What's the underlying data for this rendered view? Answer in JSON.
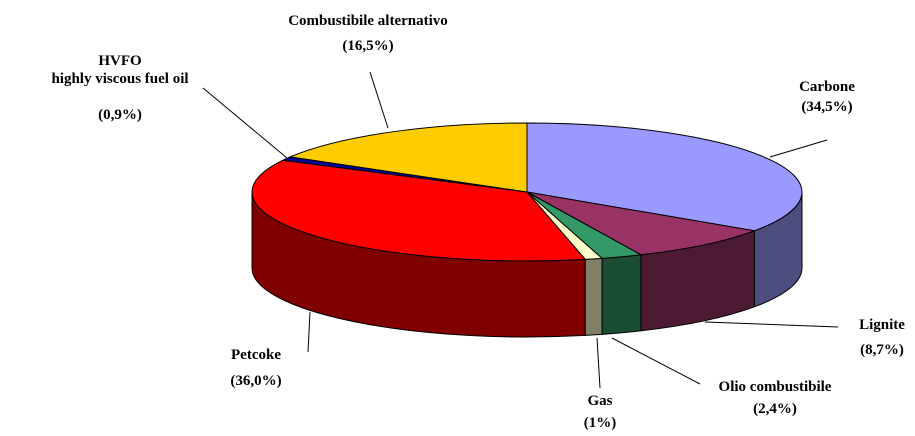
{
  "chart_data": {
    "type": "pie3d",
    "categories": [
      "Carbone",
      "Lignite",
      "Olio combustibile",
      "Gas",
      "Petcoke",
      "HVFO\nhighly viscous fuel oil",
      "Combustibile alternativo"
    ],
    "values": [
      34.5,
      8.7,
      2.4,
      1,
      36.0,
      0.9,
      16.5
    ],
    "value_labels": [
      "(34,5%)",
      "(8,7%)",
      "(2,4%)",
      "(1%)",
      "(36,0%)",
      "(0,9%)",
      "(16,5%)"
    ],
    "colors": [
      "#9999ff",
      "#993366",
      "#339966",
      "#ffffcc",
      "#ff0000",
      "#000099",
      "#ffcc00"
    ]
  }
}
